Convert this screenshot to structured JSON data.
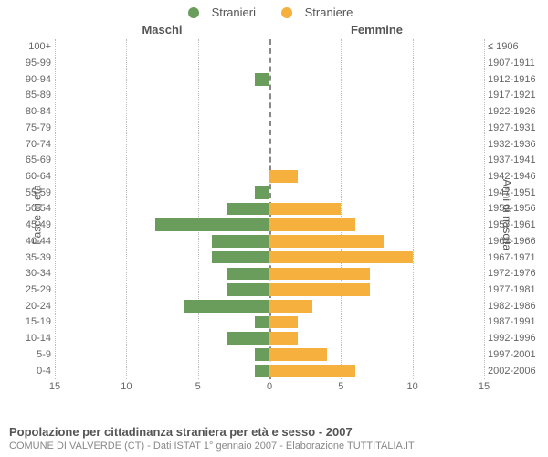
{
  "legend": {
    "male": "Stranieri",
    "female": "Straniere"
  },
  "headers": {
    "male": "Maschi",
    "female": "Femmine"
  },
  "axis": {
    "left_label": "Fasce di età",
    "right_label": "Anni di nascita",
    "xmax": 15,
    "xticks": [
      15,
      10,
      5,
      0,
      5,
      10,
      15
    ]
  },
  "colors": {
    "male_fill": "#6a9d5b",
    "female_fill": "#f6b03e",
    "grid": "#bbbbbb",
    "text": "#555555",
    "bg": "#ffffff"
  },
  "rows": [
    {
      "age": "100+",
      "birth": "≤ 1906",
      "m": 0,
      "f": 0
    },
    {
      "age": "95-99",
      "birth": "1907-1911",
      "m": 0,
      "f": 0
    },
    {
      "age": "90-94",
      "birth": "1912-1916",
      "m": 1,
      "f": 0
    },
    {
      "age": "85-89",
      "birth": "1917-1921",
      "m": 0,
      "f": 0
    },
    {
      "age": "80-84",
      "birth": "1922-1926",
      "m": 0,
      "f": 0
    },
    {
      "age": "75-79",
      "birth": "1927-1931",
      "m": 0,
      "f": 0
    },
    {
      "age": "70-74",
      "birth": "1932-1936",
      "m": 0,
      "f": 0
    },
    {
      "age": "65-69",
      "birth": "1937-1941",
      "m": 0,
      "f": 0
    },
    {
      "age": "60-64",
      "birth": "1942-1946",
      "m": 0,
      "f": 2
    },
    {
      "age": "55-59",
      "birth": "1947-1951",
      "m": 1,
      "f": 0
    },
    {
      "age": "50-54",
      "birth": "1952-1956",
      "m": 3,
      "f": 5
    },
    {
      "age": "45-49",
      "birth": "1957-1961",
      "m": 8,
      "f": 6
    },
    {
      "age": "40-44",
      "birth": "1962-1966",
      "m": 4,
      "f": 8
    },
    {
      "age": "35-39",
      "birth": "1967-1971",
      "m": 4,
      "f": 10
    },
    {
      "age": "30-34",
      "birth": "1972-1976",
      "m": 3,
      "f": 7
    },
    {
      "age": "25-29",
      "birth": "1977-1981",
      "m": 3,
      "f": 7
    },
    {
      "age": "20-24",
      "birth": "1982-1986",
      "m": 6,
      "f": 3
    },
    {
      "age": "15-19",
      "birth": "1987-1991",
      "m": 1,
      "f": 2
    },
    {
      "age": "10-14",
      "birth": "1992-1996",
      "m": 3,
      "f": 2
    },
    {
      "age": "5-9",
      "birth": "1997-2001",
      "m": 1,
      "f": 4
    },
    {
      "age": "0-4",
      "birth": "2002-2006",
      "m": 1,
      "f": 6
    }
  ],
  "footer": {
    "title": "Popolazione per cittadinanza straniera per età e sesso - 2007",
    "sub": "COMUNE DI VALVERDE (CT) - Dati ISTAT 1° gennaio 2007 - Elaborazione TUTTITALIA.IT"
  }
}
